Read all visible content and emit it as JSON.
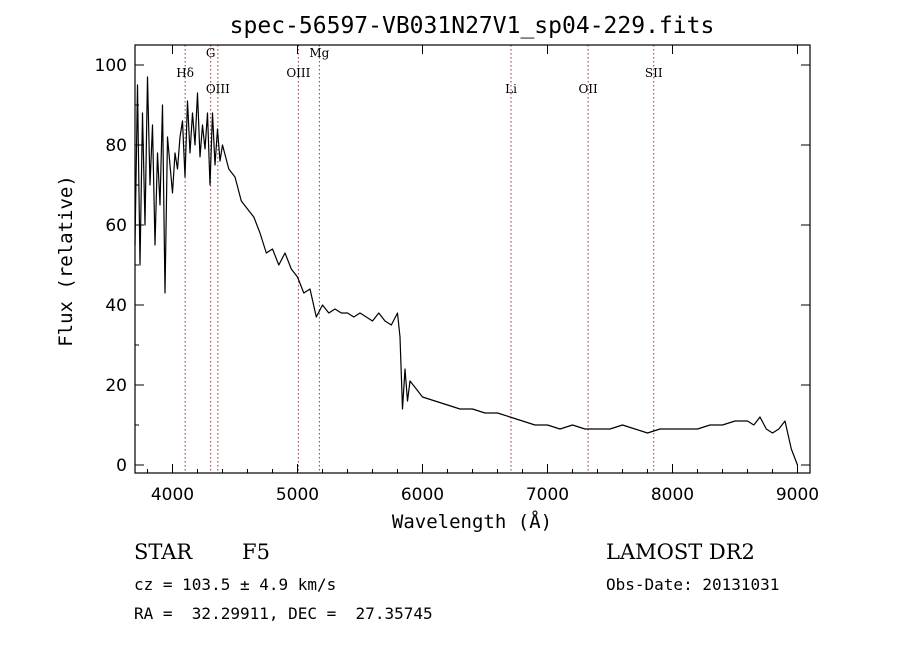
{
  "chart_data": {
    "type": "line",
    "title": "spec-56597-VB031N27V1_sp04-229.fits",
    "xlabel": "Wavelength (Å)",
    "ylabel": "Flux (relative)",
    "xlim": [
      3700,
      9100
    ],
    "ylim": [
      -2,
      105
    ],
    "x_ticks": [
      4000,
      5000,
      6000,
      7000,
      8000,
      9000
    ],
    "y_ticks": [
      0,
      20,
      40,
      60,
      80,
      100
    ],
    "grid": false,
    "legend": "none",
    "series_color": "#000000",
    "line_marker_color": "#a52a2a",
    "spectrum": {
      "x": [
        3700,
        3720,
        3740,
        3760,
        3780,
        3800,
        3820,
        3840,
        3860,
        3880,
        3900,
        3920,
        3940,
        3960,
        3980,
        4000,
        4020,
        4040,
        4060,
        4080,
        4100,
        4120,
        4140,
        4160,
        4180,
        4200,
        4220,
        4240,
        4260,
        4280,
        4300,
        4320,
        4340,
        4360,
        4380,
        4400,
        4450,
        4500,
        4550,
        4600,
        4650,
        4700,
        4750,
        4800,
        4850,
        4900,
        4950,
        5000,
        5050,
        5100,
        5150,
        5200,
        5250,
        5300,
        5350,
        5400,
        5450,
        5500,
        5550,
        5600,
        5650,
        5700,
        5750,
        5800,
        5820,
        5840,
        5860,
        5880,
        5900,
        5950,
        6000,
        6100,
        6200,
        6300,
        6400,
        6500,
        6600,
        6700,
        6800,
        6900,
        7000,
        7100,
        7200,
        7300,
        7400,
        7500,
        7600,
        7700,
        7800,
        7900,
        8000,
        8100,
        8200,
        8300,
        8400,
        8500,
        8550,
        8600,
        8650,
        8700,
        8750,
        8800,
        8850,
        8900,
        8950,
        9000
      ],
      "y": [
        55,
        95,
        50,
        88,
        60,
        97,
        70,
        85,
        55,
        78,
        65,
        90,
        43,
        82,
        75,
        68,
        78,
        74,
        82,
        86,
        72,
        91,
        78,
        88,
        80,
        93,
        77,
        85,
        79,
        88,
        70,
        88,
        75,
        84,
        76,
        80,
        74,
        72,
        66,
        64,
        62,
        58,
        53,
        54,
        50,
        53,
        49,
        47,
        43,
        44,
        37,
        40,
        38,
        39,
        38,
        38,
        37,
        38,
        37,
        36,
        38,
        36,
        35,
        38,
        32,
        14,
        24,
        16,
        21,
        19,
        17,
        16,
        15,
        14,
        14,
        13,
        13,
        12,
        11,
        10,
        10,
        9,
        10,
        9,
        9,
        9,
        10,
        9,
        8,
        9,
        9,
        9,
        9,
        10,
        10,
        11,
        11,
        11,
        10,
        12,
        9,
        8,
        9,
        11,
        4,
        0
      ]
    },
    "spectral_lines": [
      {
        "label": "Hδ",
        "x": 4101,
        "label_y": 97
      },
      {
        "label": "G",
        "x": 4305,
        "label_y": 102
      },
      {
        "label": "OIII",
        "x": 4363,
        "label_y": 93
      },
      {
        "label": "OIII",
        "x": 5007,
        "label_y": 97
      },
      {
        "label": "Mg",
        "x": 5175,
        "label_y": 102
      },
      {
        "label": "Li",
        "x": 6708,
        "label_y": 93
      },
      {
        "label": "OII",
        "x": 7325,
        "label_y": 93
      },
      {
        "label": "SII",
        "x": 7850,
        "label_y": 97
      }
    ]
  },
  "info": {
    "object_type": "STAR",
    "subclass": "F5",
    "survey": "LAMOST DR2",
    "velocity": "cz = 103.5 ± 4.9 km/s",
    "obs_date": "Obs-Date: 20131031",
    "coords": "RA =  32.29911, DEC =  27.35745"
  }
}
